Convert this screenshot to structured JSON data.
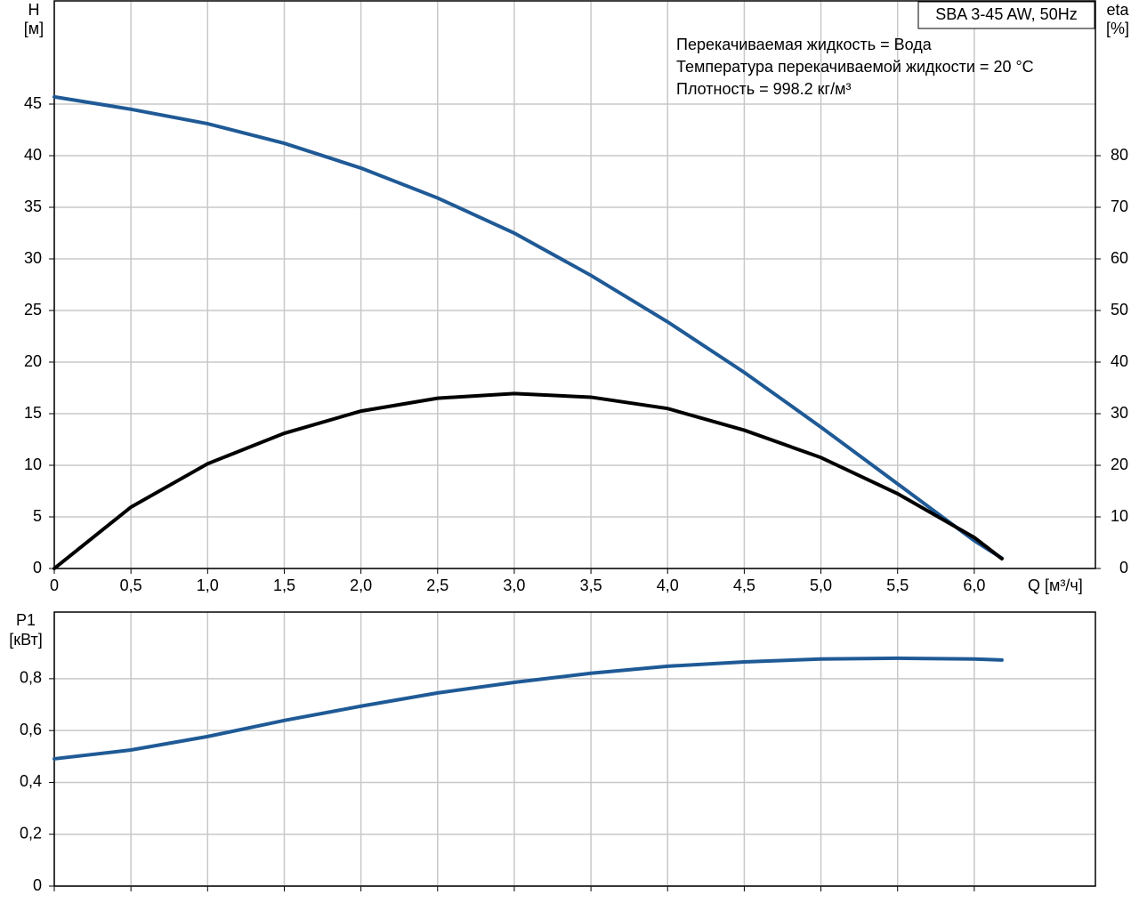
{
  "chart_data": [
    {
      "type": "line",
      "title": "SBA 3-45 AW, 50Hz",
      "annotations": [
        "Перекачиваемая жидкость = Вода",
        "Температура перекачиваемой жидкости = 20 °C",
        "Плотность = 998.2 кг/м³"
      ],
      "y_label": "H",
      "y_unit": "[м]",
      "y2_label": "eta",
      "y2_unit": "[%]",
      "x_label": "Q [м³/ч]",
      "x": [
        0,
        0.5,
        1.0,
        1.5,
        2.0,
        2.5,
        3.0,
        3.5,
        4.0,
        4.5,
        5.0,
        5.5,
        6.0,
        6.18
      ],
      "series": [
        {
          "color": "#1f5a96",
          "values": [
            45.7,
            44.5,
            43.1,
            41.2,
            38.8,
            35.9,
            32.5,
            28.4,
            23.9,
            19.0,
            13.7,
            8.2,
            2.7,
            1.0
          ]
        },
        {
          "color": "#000000",
          "axis": "y2",
          "values": [
            0,
            11.9,
            20.3,
            26.2,
            30.5,
            33,
            33.9,
            33.2,
            31,
            26.8,
            21.5,
            14.5,
            6.0,
            1.9
          ]
        }
      ],
      "xlim": [
        0,
        6.79
      ],
      "xticks": [
        0,
        {
          "value": 0.5,
          "label": "0,5"
        },
        {
          "value": 1.0,
          "label": "1,0"
        },
        {
          "value": 1.5,
          "label": "1,5"
        },
        {
          "value": 2.0,
          "label": "2,0"
        },
        {
          "value": 2.5,
          "label": "2,5"
        },
        {
          "value": 3.0,
          "label": "3,0"
        },
        {
          "value": 3.5,
          "label": "3,5"
        },
        {
          "value": 4.0,
          "label": "4,0"
        },
        {
          "value": 4.5,
          "label": "4,5"
        },
        {
          "value": 5.0,
          "label": "5,0"
        },
        {
          "value": 5.5,
          "label": "5,5"
        },
        {
          "value": 6.0,
          "label": "6,0"
        }
      ],
      "ylim": [
        0,
        55
      ],
      "yticks": [
        0,
        5,
        10,
        15,
        20,
        25,
        30,
        35,
        40,
        45
      ],
      "y2lim": [
        0,
        110
      ],
      "y2ticks": [
        0,
        10,
        20,
        30,
        40,
        50,
        60,
        70,
        80
      ],
      "grid": true
    },
    {
      "type": "line",
      "y_label": "P1",
      "y_unit": "[кВт]",
      "x": [
        0,
        0.5,
        1.0,
        1.5,
        2.0,
        2.5,
        3.0,
        3.5,
        4.0,
        4.5,
        5.0,
        5.5,
        6.0,
        6.18
      ],
      "series": [
        {
          "color": "#1f5a96",
          "values": [
            0.491,
            0.525,
            0.577,
            0.639,
            0.694,
            0.745,
            0.786,
            0.821,
            0.848,
            0.865,
            0.876,
            0.879,
            0.876,
            0.872
          ]
        }
      ],
      "xlim": [
        0,
        6.79
      ],
      "ylim": [
        0,
        1.057
      ],
      "yticks": [
        0,
        {
          "value": 0.2,
          "label": "0,2"
        },
        {
          "value": 0.4,
          "label": "0,4"
        },
        {
          "value": 0.6,
          "label": "0,6"
        },
        {
          "value": 0.8,
          "label": "0,8"
        }
      ],
      "grid": true
    }
  ]
}
